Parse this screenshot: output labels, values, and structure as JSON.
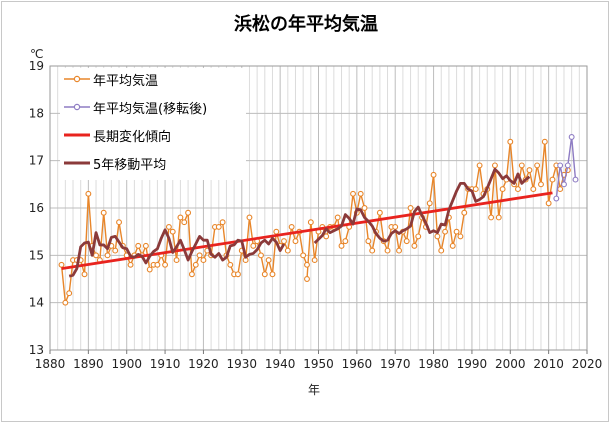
{
  "title": "浜松の年平均気温",
  "chart_data": {
    "type": "line",
    "xlabel": "年",
    "ylabel": "",
    "yunit": "℃",
    "xlim": [
      1880,
      2020
    ],
    "ylim": [
      13,
      19
    ],
    "xticks": [
      1880,
      1890,
      1900,
      1910,
      1920,
      1930,
      1940,
      1950,
      1960,
      1970,
      1980,
      1990,
      2000,
      2010,
      2020
    ],
    "yticks": [
      13,
      14,
      15,
      16,
      17,
      18,
      19
    ],
    "grid": true,
    "legend_position": "top-left",
    "series": [
      {
        "name": "年平均気温",
        "color": "#e8862a",
        "marker": "circle",
        "segments": [
          {
            "x_start": 1883,
            "values": [
              14.8,
              14.0,
              14.2,
              14.9,
              14.9,
              14.9,
              14.6,
              16.3,
              15.2,
              15.0,
              14.9,
              15.9,
              15.0,
              15.2,
              15.1,
              15.7,
              15.2,
              15.0,
              14.8,
              15.0,
              15.2,
              15.0,
              15.2,
              14.7,
              14.8,
              14.8,
              15.0,
              14.8,
              15.6,
              15.5,
              14.9,
              15.8,
              15.7,
              15.9,
              14.6,
              14.8,
              15.0,
              14.9,
              15.1,
              15.0,
              15.6,
              15.6,
              15.7,
              15.0,
              14.8,
              14.6,
              14.6,
              15.1,
              14.9,
              15.8,
              15.2,
              15.3,
              15.0,
              14.6,
              14.9,
              14.6,
              15.5,
              15.2,
              15.3,
              15.1,
              15.6,
              15.3,
              15.5,
              15.0,
              14.8
            ]
          },
          {
            "x_start": 1947,
            "values": [
              14.5,
              15.7,
              14.9,
              15.5,
              15.6,
              15.4,
              15.6,
              15.6,
              15.8,
              15.2,
              15.3,
              15.6,
              16.3,
              15.9,
              16.3,
              16.0,
              15.3,
              15.1,
              15.5,
              15.9,
              15.3,
              15.1,
              15.6,
              15.6,
              15.1,
              15.5,
              15.3,
              16.0,
              15.2,
              15.4,
              15.8,
              15.6,
              16.1,
              16.7,
              15.4,
              15.1,
              15.5,
              15.8,
              15.2,
              15.5,
              15.4,
              15.9,
              16.4,
              16.4,
              16.4,
              16.9,
              16.3,
              16.4,
              15.8,
              16.9,
              15.8,
              16.4,
              16.6,
              17.4,
              16.5,
              16.4,
              16.9,
              16.6,
              16.8,
              16.4,
              16.9,
              16.5,
              17.4,
              16.1,
              16.6,
              16.9,
              16.4,
              16.7,
              16.8
            ]
          }
        ]
      },
      {
        "name": "年平均気温(移転後)",
        "color": "#8e7cc3",
        "marker": "circle",
        "segments": [
          {
            "x_start": 2012,
            "values": [
              16.2,
              16.9,
              16.5,
              16.9,
              17.5,
              16.6
            ]
          }
        ]
      },
      {
        "name": "長期変化傾向",
        "color": "#e8231e",
        "marker": "none",
        "segments": [
          {
            "x_start": 1883,
            "x_end": 2011,
            "values": [
              14.72,
              16.32
            ]
          }
        ]
      },
      {
        "name": "5年移動平均",
        "color": "#8b3a3a",
        "marker": "none",
        "segments": [
          {
            "x_start": 1885,
            "values": [
              14.56,
              14.58,
              14.72,
              15.18,
              15.26,
              15.28,
              15.0,
              15.48,
              15.22,
              15.22,
              15.14,
              15.38,
              15.4,
              15.28,
              15.16,
              15.14,
              14.98,
              14.96,
              15.02,
              14.98,
              14.84,
              14.98,
              15.08,
              15.14,
              15.36,
              15.54,
              15.36,
              15.06,
              15.18,
              15.32,
              15.12,
              14.9,
              15.08,
              15.24,
              15.4,
              15.32,
              15.32,
              15.02,
              14.96,
              15.04,
              14.9,
              14.96,
              15.2,
              15.22,
              15.32,
              15.3,
              14.96,
              15.02,
              15.04,
              15.12,
              15.26,
              15.32,
              15.24,
              15.36,
              15.28,
              15.1,
              15.24
            ]
          },
          {
            "x_start": 1949,
            "values": [
              15.26,
              15.34,
              15.42,
              15.56,
              15.48,
              15.52,
              15.56,
              15.62,
              15.86,
              15.78,
              15.66,
              15.98,
              15.96,
              15.8,
              15.72,
              15.62,
              15.46,
              15.36,
              15.3,
              15.32,
              15.46,
              15.52,
              15.46,
              15.52,
              15.56,
              15.62,
              15.92,
              16.02,
              15.84,
              15.68,
              15.48,
              15.52,
              15.48,
              15.66,
              15.64,
              15.96,
              16.16,
              16.36,
              16.52,
              16.52,
              16.4,
              16.36,
              16.14,
              16.18,
              16.24,
              16.42,
              16.62,
              16.82,
              16.74,
              16.62,
              16.68,
              16.58,
              16.52,
              16.72,
              16.52,
              16.6,
              16.66
            ]
          }
        ]
      }
    ]
  }
}
